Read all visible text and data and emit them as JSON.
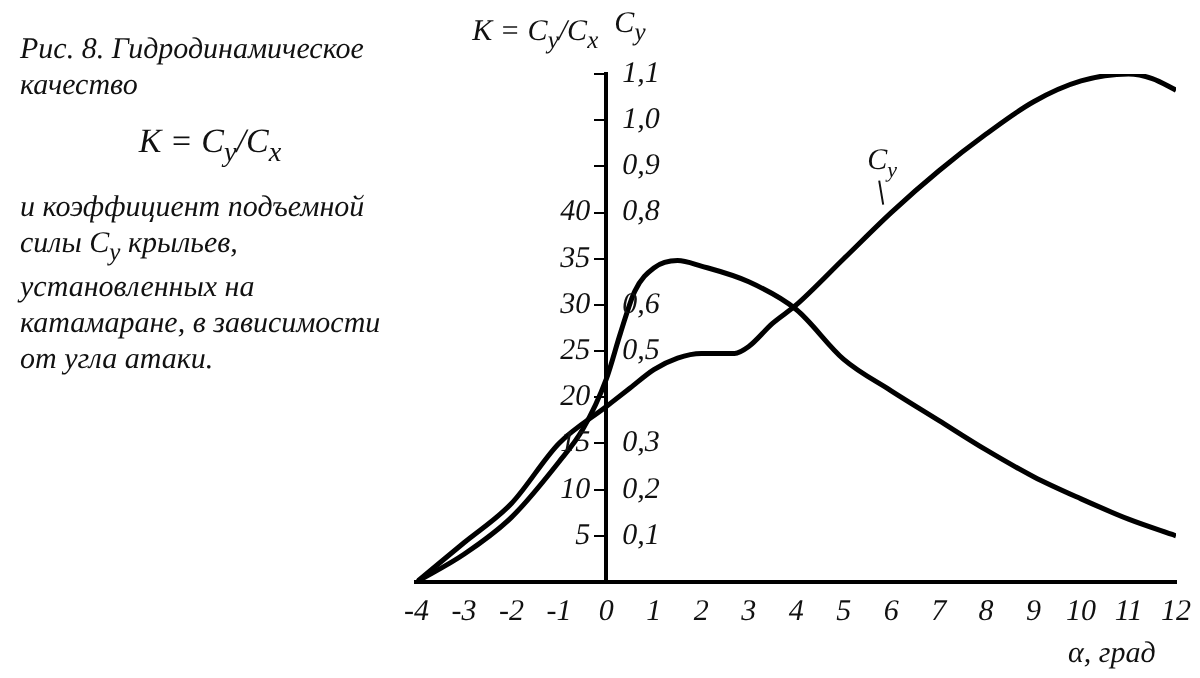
{
  "chart_data": {
    "type": "line",
    "title": "Рис. 8. Гидродинамическое качество",
    "subtitle": "и коэффициент подъемной силы C$_{y}$ крыльев, установленных на катамаране, в зависимости от угла атаки.",
    "annotations": [
      "K = C$_{y}$/C$_{x}$"
    ],
    "xlabel": "α, град",
    "ylabel": "K = C$_{y}$/C$_{x}$",
    "y2label": "C$_{y}$",
    "series": [
      {
        "color": "#000000",
        "axis": "y",
        "x": [
          -4,
          -3,
          -2,
          -1,
          -0.5,
          0,
          0.3,
          0.6,
          1,
          1.5,
          2,
          3,
          4,
          5,
          6,
          7,
          8,
          9,
          10,
          11,
          12
        ],
        "values": [
          0,
          3,
          7,
          13,
          16.5,
          22,
          27,
          31.5,
          34,
          34.8,
          34.2,
          32.5,
          29.5,
          24.1,
          20.7,
          17.5,
          14.3,
          11.4,
          9,
          6.8,
          5
        ]
      },
      {
        "name": "C$_{y}$",
        "color": "#000000",
        "axis": "y2",
        "x": [
          -4,
          -3,
          -2,
          -1,
          0,
          0.5,
          1,
          1.5,
          2,
          2.7,
          3,
          3.5,
          4,
          5,
          6,
          7,
          8,
          9,
          10,
          11,
          11.5,
          12
        ],
        "values": [
          0,
          0.085,
          0.17,
          0.3,
          0.38,
          0.42,
          0.46,
          0.485,
          0.495,
          0.495,
          0.51,
          0.56,
          0.6,
          0.7,
          0.8,
          0.89,
          0.97,
          1.04,
          1.085,
          1.1,
          1.09,
          1.065
        ]
      }
    ],
    "xlim": [
      -4,
      12
    ],
    "xticks": [
      -4,
      -3,
      -2,
      -1,
      0,
      1,
      2,
      3,
      4,
      5,
      6,
      7,
      8,
      9,
      10,
      11,
      12
    ],
    "ylim": [
      0,
      55
    ],
    "yticks": [
      5,
      10,
      15,
      20,
      25,
      30,
      35,
      40
    ],
    "y2lim": [
      0,
      1.1
    ],
    "y2ticks": [
      {
        "value": 0.1,
        "label": "0,1"
      },
      {
        "value": 0.2,
        "label": "0,2"
      },
      {
        "value": 0.3,
        "label": "0,3"
      },
      {
        "value": 0.4,
        "label": null
      },
      {
        "value": 0.5,
        "label": "0,5"
      },
      {
        "value": 0.6,
        "label": "0,6"
      },
      {
        "value": 0.7,
        "label": null
      },
      {
        "value": 0.8,
        "label": "0,8"
      },
      {
        "value": 0.9,
        "label": "0,9"
      },
      {
        "value": 1.0,
        "label": "1,0"
      },
      {
        "value": 1.1,
        "label": "1,1"
      }
    ],
    "grid": false,
    "legend": false,
    "marker": "none",
    "line_style": "solid"
  }
}
